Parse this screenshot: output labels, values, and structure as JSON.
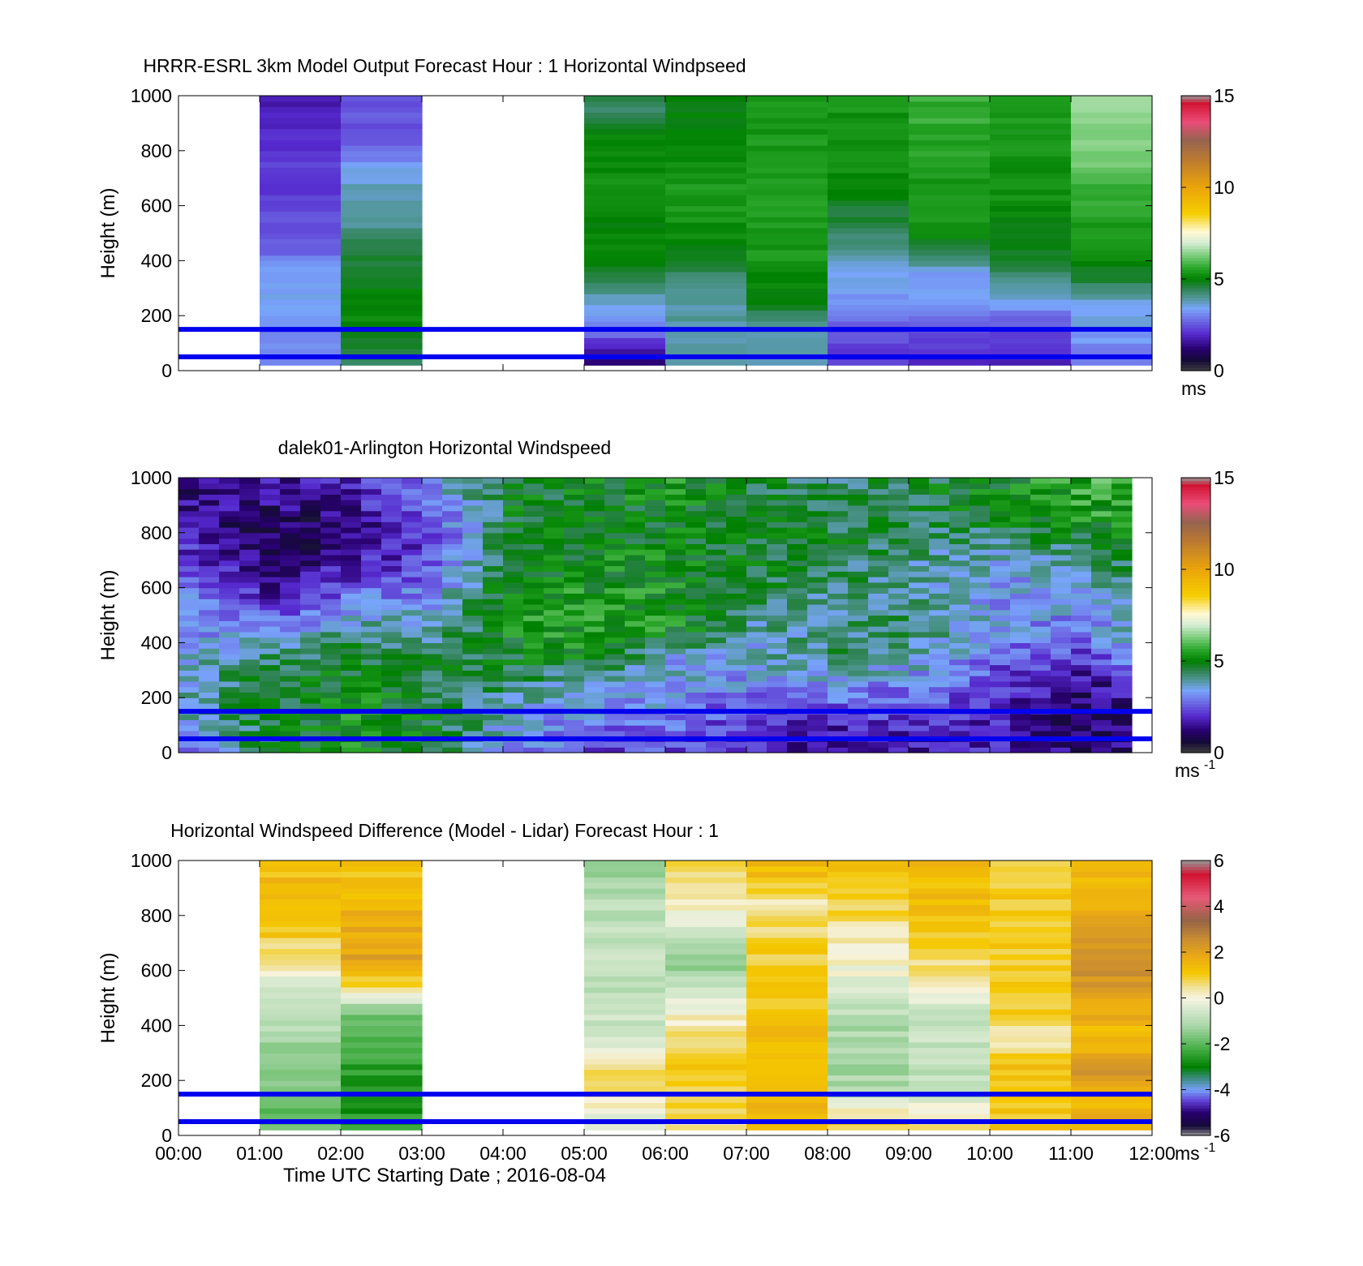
{
  "figure": {
    "xlabel": "Time UTC  Starting Date ; 2016-08-04",
    "x_ticks": [
      "00:00",
      "01:00",
      "02:00",
      "03:00",
      "04:00",
      "05:00",
      "06:00",
      "07:00",
      "08:00",
      "09:00",
      "10:00",
      "11:00",
      "12:00"
    ],
    "y_ticks": [
      "0",
      "200",
      "400",
      "600",
      "800",
      "1000"
    ],
    "ylabel": "Height (m)",
    "reference_lines_m": [
      50,
      150
    ],
    "reference_line_color": "#0000ee"
  },
  "chart_data": [
    {
      "type": "heatmap",
      "title": "HRRR-ESRL 3km Model Output   Forecast Hour : 1 Horizontal Windpseed",
      "ylabel": "Height (m)",
      "xlim_hours": [
        0,
        12
      ],
      "ylim": [
        0,
        1000
      ],
      "colorbar": {
        "min": 0,
        "max": 15,
        "ticks": [
          "0",
          "5",
          "10",
          "15"
        ],
        "unit": "ms",
        "palette": "wind"
      },
      "hourly_columns": [
        {
          "hour_start": 0,
          "values": null
        },
        {
          "hour_start": 1,
          "values": [
            3.0,
            3.0,
            3.4,
            3.4,
            2.6,
            2.4,
            2.2,
            2.2,
            2.0,
            1.8
          ]
        },
        {
          "hour_start": 2,
          "values": [
            4.5,
            5.0,
            5.2,
            4.8,
            4.5,
            4.0,
            3.8,
            3.3,
            2.4,
            2.5
          ]
        },
        {
          "hour_start": 3,
          "values": null
        },
        {
          "hour_start": 4,
          "values": null
        },
        {
          "hour_start": 5,
          "values": [
            1.2,
            3.0,
            3.6,
            4.8,
            5.0,
            5.1,
            5.2,
            5.2,
            5.1,
            4.4
          ]
        },
        {
          "hour_start": 6,
          "values": [
            3.8,
            3.9,
            4.0,
            4.4,
            5.0,
            5.3,
            5.4,
            5.2,
            5.0,
            5.0
          ]
        },
        {
          "hour_start": 7,
          "values": [
            3.8,
            3.9,
            4.8,
            5.2,
            5.4,
            5.4,
            5.4,
            5.4,
            5.4,
            5.3
          ]
        },
        {
          "hour_start": 8,
          "values": [
            2.2,
            2.5,
            3.2,
            3.5,
            4.2,
            4.6,
            5.0,
            5.3,
            5.3,
            5.3
          ]
        },
        {
          "hour_start": 9,
          "values": [
            2.0,
            2.4,
            3.3,
            3.4,
            4.8,
            5.3,
            5.3,
            5.5,
            5.6,
            5.7
          ]
        },
        {
          "hour_start": 10,
          "values": [
            1.8,
            2.4,
            3.4,
            4.4,
            5.0,
            5.0,
            5.3,
            5.3,
            5.4,
            5.5
          ]
        },
        {
          "hour_start": 11,
          "values": [
            3.0,
            3.4,
            3.6,
            4.8,
            5.4,
            5.5,
            5.7,
            6.2,
            6.3,
            6.4
          ]
        }
      ]
    },
    {
      "type": "heatmap",
      "title": "dalek01-Arlington  Horizontal Windspeed",
      "ylabel": "Height (m)",
      "xlim_hours": [
        0,
        12
      ],
      "ylim": [
        0,
        1000
      ],
      "colorbar": {
        "min": 0,
        "max": 15,
        "ticks": [
          "0",
          "5",
          "10",
          "15"
        ],
        "unit": "ms-1",
        "palette": "wind"
      },
      "profile_time_step_min": 15,
      "profiles_by_hour": [
        {
          "hour": 0,
          "heights_m": [
            50,
            150,
            250,
            350,
            450,
            550,
            650,
            750,
            850,
            950
          ],
          "values": [
            3.0,
            4.0,
            3.8,
            3.4,
            3.2,
            3.0,
            2.6,
            2.0,
            1.6,
            1.4
          ]
        },
        {
          "hour": 1,
          "values": [
            4.6,
            4.8,
            4.8,
            4.2,
            3.0,
            2.0,
            1.2,
            0.9,
            1.0,
            1.6
          ]
        },
        {
          "hour": 2,
          "values": [
            5.2,
            5.2,
            5.0,
            4.8,
            4.0,
            3.0,
            2.0,
            1.5,
            1.4,
            1.8
          ]
        },
        {
          "hour": 3,
          "values": [
            4.8,
            4.8,
            4.6,
            4.5,
            3.8,
            3.4,
            2.6,
            2.2,
            2.4,
            3.2
          ]
        },
        {
          "hour": 4,
          "values": [
            3.4,
            3.5,
            4.4,
            4.8,
            5.2,
            5.5,
            5.0,
            4.9,
            4.8,
            4.8
          ]
        },
        {
          "hour": 5,
          "values": [
            2.4,
            3.2,
            3.4,
            5.0,
            5.4,
            5.4,
            5.2,
            5.0,
            4.8,
            4.9
          ]
        },
        {
          "hour": 6,
          "values": [
            2.4,
            3.0,
            3.4,
            3.6,
            5.2,
            5.3,
            5.2,
            5.0,
            4.9,
            5.2
          ]
        },
        {
          "hour": 7,
          "values": [
            2.0,
            2.2,
            3.2,
            3.6,
            3.8,
            4.2,
            4.8,
            4.8,
            5.0,
            4.6
          ]
        },
        {
          "hour": 8,
          "values": [
            1.4,
            2.4,
            3.3,
            4.2,
            4.2,
            3.9,
            4.5,
            4.6,
            4.6,
            4.4
          ]
        },
        {
          "hour": 9,
          "values": [
            1.8,
            2.4,
            3.0,
            3.8,
            4.3,
            4.2,
            3.7,
            4.2,
            4.4,
            4.6
          ]
        },
        {
          "hour": 10,
          "values": [
            1.8,
            1.8,
            2.2,
            2.6,
            3.2,
            3.2,
            3.4,
            3.8,
            4.9,
            5.0
          ]
        },
        {
          "hour": 11,
          "values": [
            1.2,
            1.0,
            1.4,
            2.2,
            3.0,
            3.4,
            3.6,
            4.5,
            5.3,
            5.6
          ]
        },
        {
          "hour": 12,
          "values": [
            1.3,
            1.3,
            2.2,
            3.8,
            4.0,
            4.4,
            4.6,
            5.0,
            5.6,
            5.8
          ]
        }
      ]
    },
    {
      "type": "heatmap",
      "title": "Horizontal Windspeed Difference (Model - Lidar) Forecast Hour : 1",
      "ylabel": "Height (m)",
      "xlabel": "Time UTC  Starting Date ; 2016-08-04",
      "xlim_hours": [
        0,
        12
      ],
      "ylim": [
        0,
        1000
      ],
      "colorbar": {
        "min": -6,
        "max": 6,
        "ticks": [
          "-6",
          "-4",
          "-2",
          "0",
          "2",
          "4",
          "6"
        ],
        "unit": "ms-1",
        "palette": "diff"
      },
      "hourly_columns": [
        {
          "hour_start": 0,
          "values": null
        },
        {
          "hour_start": 1,
          "values": [
            -2.0,
            -1.8,
            -1.6,
            -1.2,
            -0.9,
            -0.4,
            0.6,
            1.1,
            1.6,
            1.3
          ]
        },
        {
          "hour_start": 2,
          "values": [
            -2.6,
            -2.6,
            -2.4,
            -2.0,
            -1.6,
            1.0,
            2.0,
            1.7,
            1.5,
            1.2
          ]
        },
        {
          "hour_start": 3,
          "values": null
        },
        {
          "hour_start": 4,
          "values": null
        },
        {
          "hour_start": 5,
          "values": [
            -0.6,
            0.4,
            0.6,
            -0.6,
            -0.8,
            -0.9,
            -0.7,
            -0.8,
            -1.0,
            -1.2
          ]
        },
        {
          "hour_start": 6,
          "values": [
            0.5,
            0.9,
            1.1,
            0.7,
            0.1,
            -1.0,
            -1.4,
            -0.7,
            0.2,
            0.6
          ]
        },
        {
          "hour_start": 7,
          "values": [
            1.4,
            1.4,
            1.4,
            1.3,
            1.2,
            1.1,
            1.0,
            0.7,
            0.3,
            1.4
          ]
        },
        {
          "hour_start": 8,
          "values": [
            1.0,
            -1.0,
            -1.2,
            -1.2,
            -0.9,
            -0.3,
            0.2,
            0.4,
            0.9,
            1.2
          ]
        },
        {
          "hour_start": 9,
          "values": [
            0.8,
            -1.0,
            -0.9,
            -0.8,
            -0.6,
            0.4,
            0.6,
            1.1,
            1.3,
            1.4
          ]
        },
        {
          "hour_start": 10,
          "values": [
            1.1,
            1.1,
            1.2,
            0.3,
            1.0,
            1.0,
            1.0,
            1.0,
            1.0,
            1.0
          ]
        },
        {
          "hour_start": 11,
          "values": [
            1.6,
            1.6,
            2.4,
            1.4,
            1.7,
            2.3,
            2.4,
            1.9,
            1.6,
            1.6
          ]
        }
      ]
    }
  ]
}
